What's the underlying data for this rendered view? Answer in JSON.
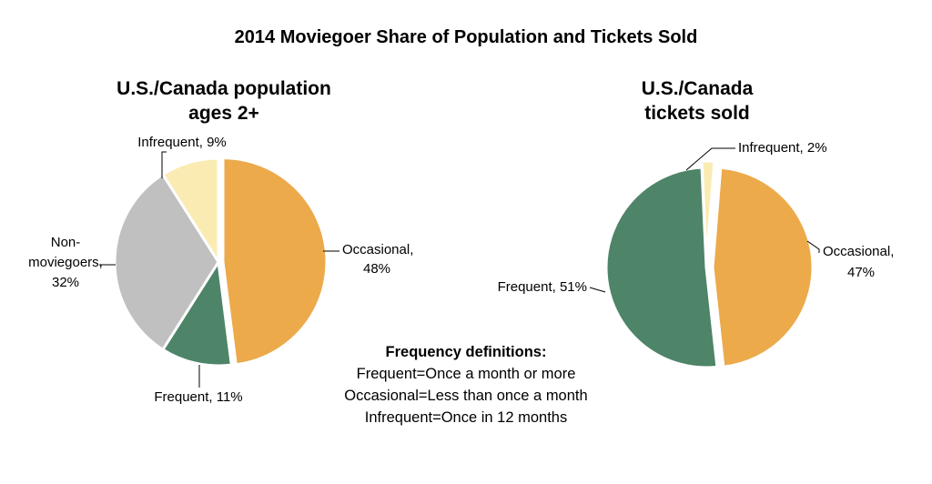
{
  "title": "2014 Moviegoer Share of Population and Tickets Sold",
  "chart_data": [
    {
      "type": "pie",
      "title_lines": [
        "U.S./Canada population",
        "ages 2+"
      ],
      "slices": [
        {
          "name": "Occasional",
          "value": 48,
          "color": "#ECAA4B",
          "label_lines": [
            "Occasional,",
            "48%"
          ]
        },
        {
          "name": "Frequent",
          "value": 11,
          "color": "#4E8468",
          "label_lines": [
            "Frequent, 11%"
          ]
        },
        {
          "name": "Non-moviegoers",
          "value": 32,
          "color": "#C0C0C0",
          "label_lines": [
            "Non-",
            "moviegoers,",
            "32%"
          ]
        },
        {
          "name": "Infrequent",
          "value": 9,
          "color": "#FAEBB3",
          "label_lines": [
            "Infrequent, 9%"
          ]
        }
      ]
    },
    {
      "type": "pie",
      "title_lines": [
        "U.S./Canada",
        "tickets sold"
      ],
      "slices": [
        {
          "name": "Occasional",
          "value": 47,
          "color": "#ECAA4B",
          "label_lines": [
            "Occasional,",
            "47%"
          ]
        },
        {
          "name": "Frequent",
          "value": 51,
          "color": "#4E8468",
          "label_lines": [
            "Frequent, 51%"
          ]
        },
        {
          "name": "Infrequent",
          "value": 2,
          "color": "#FAEBB3",
          "label_lines": [
            "Infrequent, 2%"
          ]
        }
      ]
    }
  ],
  "definitions": {
    "title": "Frequency definitions:",
    "lines": [
      "Frequent=Once a month or more",
      "Occasional=Less than once a month",
      "Infrequent=Once in 12 months"
    ]
  }
}
